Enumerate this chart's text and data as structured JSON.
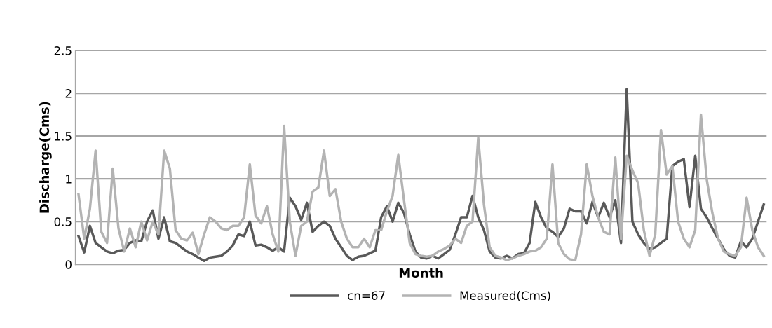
{
  "chart_data": {
    "type": "line",
    "xlabel": "Month",
    "ylabel": "Discharge(Cms)",
    "categories": [
      null,
      null,
      null,
      null,
      null,
      null,
      null,
      null,
      null,
      null,
      null,
      null,
      null,
      null,
      null,
      null,
      null,
      null,
      null,
      null,
      null,
      null,
      null,
      null,
      null,
      null,
      null,
      null,
      null,
      null,
      null,
      null,
      null,
      null,
      null,
      null,
      null,
      null,
      null,
      null,
      null,
      null,
      null,
      null,
      null,
      null,
      null,
      null,
      null,
      null,
      null,
      null,
      null,
      null,
      null,
      null,
      null,
      null,
      null,
      null,
      null,
      null,
      null,
      null,
      null,
      null,
      null,
      null,
      null,
      null,
      null,
      null,
      null,
      null,
      null,
      null,
      null,
      null,
      null,
      null,
      null,
      null,
      null,
      null,
      null,
      null,
      null,
      null,
      null,
      null,
      null,
      null,
      null,
      null,
      null,
      null,
      null,
      null,
      null,
      null,
      null,
      null,
      null,
      null,
      null,
      null,
      null,
      null,
      null,
      null,
      null,
      null,
      null,
      null,
      null,
      null,
      null,
      null,
      null,
      null,
      null
    ],
    "series": [
      {
        "name": "cn=67",
        "color": "#595959",
        "values": [
          0.33,
          0.14,
          0.45,
          0.25,
          0.2,
          0.15,
          0.13,
          0.16,
          0.17,
          0.25,
          0.28,
          0.27,
          0.5,
          0.63,
          0.3,
          0.55,
          0.27,
          0.25,
          0.2,
          0.15,
          0.12,
          0.08,
          0.04,
          0.08,
          0.09,
          0.1,
          0.15,
          0.22,
          0.35,
          0.33,
          0.5,
          0.22,
          0.23,
          0.2,
          0.16,
          0.2,
          0.15,
          0.78,
          0.68,
          0.52,
          0.72,
          0.38,
          0.45,
          0.5,
          0.45,
          0.3,
          0.2,
          0.1,
          0.05,
          0.09,
          0.1,
          0.13,
          0.16,
          0.55,
          0.68,
          0.5,
          0.72,
          0.6,
          0.35,
          0.15,
          0.08,
          0.07,
          0.1,
          0.07,
          0.12,
          0.17,
          0.35,
          0.55,
          0.55,
          0.8,
          0.55,
          0.4,
          0.15,
          0.08,
          0.07,
          0.1,
          0.07,
          0.12,
          0.13,
          0.25,
          0.73,
          0.55,
          0.42,
          0.38,
          0.32,
          0.42,
          0.65,
          0.62,
          0.62,
          0.48,
          0.73,
          0.55,
          0.72,
          0.55,
          0.75,
          0.25,
          2.05,
          0.5,
          0.35,
          0.25,
          0.18,
          0.2,
          0.25,
          0.3,
          1.15,
          1.2,
          1.23,
          0.67,
          1.27,
          0.65,
          0.55,
          0.42,
          0.3,
          0.18,
          0.1,
          0.08,
          0.27,
          0.2,
          0.3,
          0.5,
          0.7
        ]
      },
      {
        "name": "Measured(Cms)",
        "color": "#b3b3b3",
        "values": [
          0.82,
          0.3,
          0.65,
          1.33,
          0.38,
          0.25,
          1.12,
          0.42,
          0.15,
          0.42,
          0.2,
          0.5,
          0.28,
          0.5,
          0.35,
          1.33,
          1.12,
          0.4,
          0.3,
          0.28,
          0.37,
          0.12,
          0.35,
          0.55,
          0.5,
          0.42,
          0.4,
          0.45,
          0.45,
          0.55,
          1.17,
          0.57,
          0.48,
          0.68,
          0.35,
          0.15,
          1.62,
          0.5,
          0.1,
          0.45,
          0.5,
          0.85,
          0.9,
          1.33,
          0.8,
          0.88,
          0.5,
          0.3,
          0.2,
          0.2,
          0.3,
          0.2,
          0.4,
          0.4,
          0.62,
          0.8,
          1.28,
          0.75,
          0.25,
          0.12,
          0.1,
          0.09,
          0.1,
          0.15,
          0.18,
          0.22,
          0.3,
          0.25,
          0.45,
          0.5,
          1.48,
          0.7,
          0.2,
          0.1,
          0.08,
          0.05,
          0.07,
          0.1,
          0.12,
          0.15,
          0.16,
          0.2,
          0.3,
          1.17,
          0.25,
          0.12,
          0.06,
          0.05,
          0.35,
          1.17,
          0.8,
          0.55,
          0.38,
          0.35,
          1.25,
          0.3,
          1.27,
          1.1,
          0.95,
          0.4,
          0.1,
          0.35,
          1.57,
          1.05,
          1.15,
          0.5,
          0.3,
          0.2,
          0.4,
          1.75,
          1.0,
          0.6,
          0.3,
          0.15,
          0.12,
          0.1,
          0.2,
          0.78,
          0.4,
          0.2,
          0.1
        ]
      }
    ],
    "ylim": [
      0,
      2.5
    ],
    "yticks": [
      0,
      0.5,
      1,
      1.5,
      2,
      2.5
    ],
    "grid": "y",
    "legend": "bottom",
    "marker": "none",
    "line_style": "solid"
  }
}
